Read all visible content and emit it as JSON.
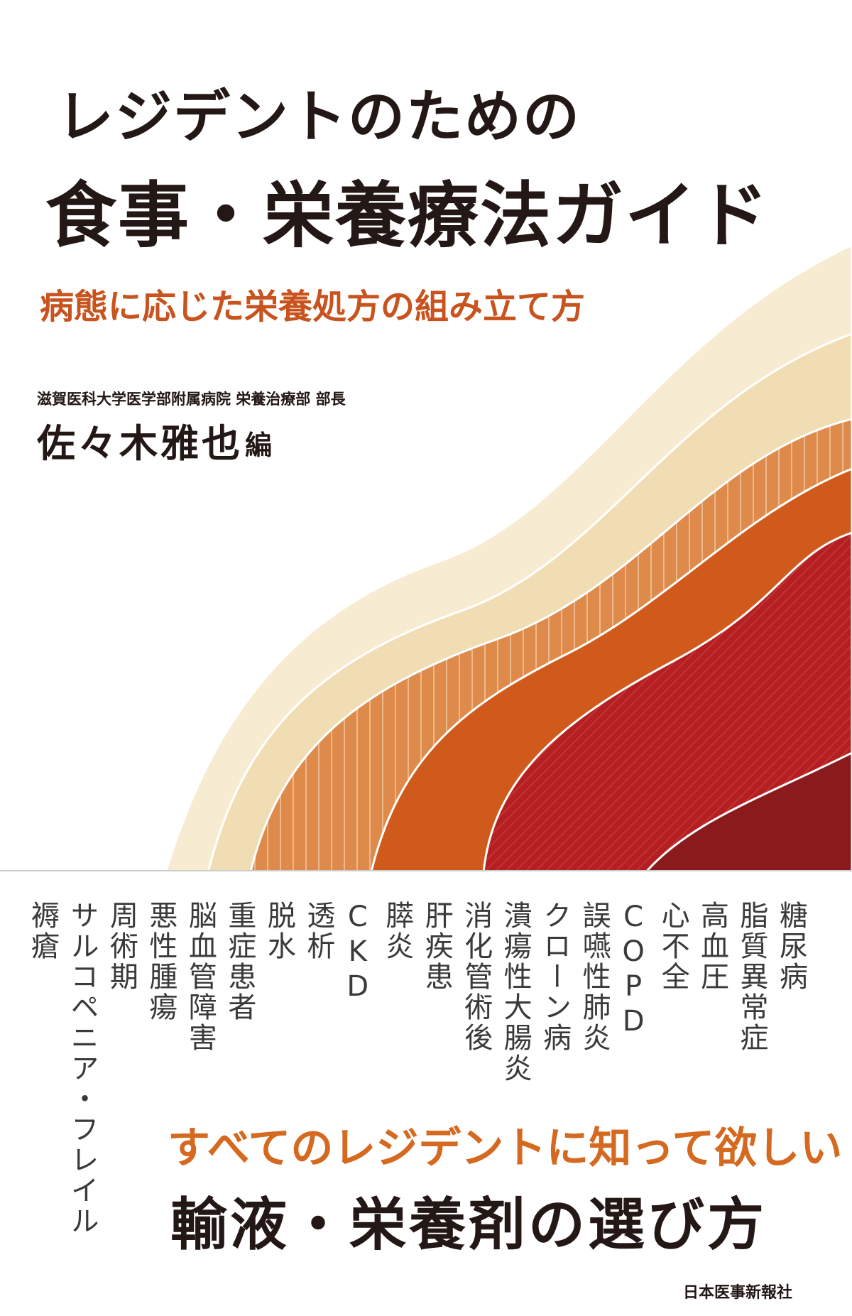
{
  "cover": {
    "title": [
      "レジデントのための",
      "食事・栄養療法ガイド"
    ],
    "subtitle": "病態に応じた栄養処方の組み立て方",
    "affiliation": "滋賀医科大学医学部附属病院 栄養治療部 部長",
    "author": "佐々木雅也",
    "author_role": "編",
    "topics": [
      "糖尿病",
      "脂質異常症",
      "高血圧",
      "心不全",
      "COPD",
      "誤嚥性肺炎",
      "クローン病",
      "潰瘍性大腸炎",
      "消化管術後",
      "肝疾患",
      "膵炎",
      "CKD",
      "透析",
      "脱水",
      "重症患者",
      "脳血管障害",
      "悪性腫瘍",
      "周術期",
      "サルコペニア・フレイル",
      "褥瘡"
    ],
    "tagline": [
      "すべてのレジデントに知って欲しい",
      "輸液・栄養剤の選び方"
    ],
    "publisher": "日本医事新報社"
  }
}
